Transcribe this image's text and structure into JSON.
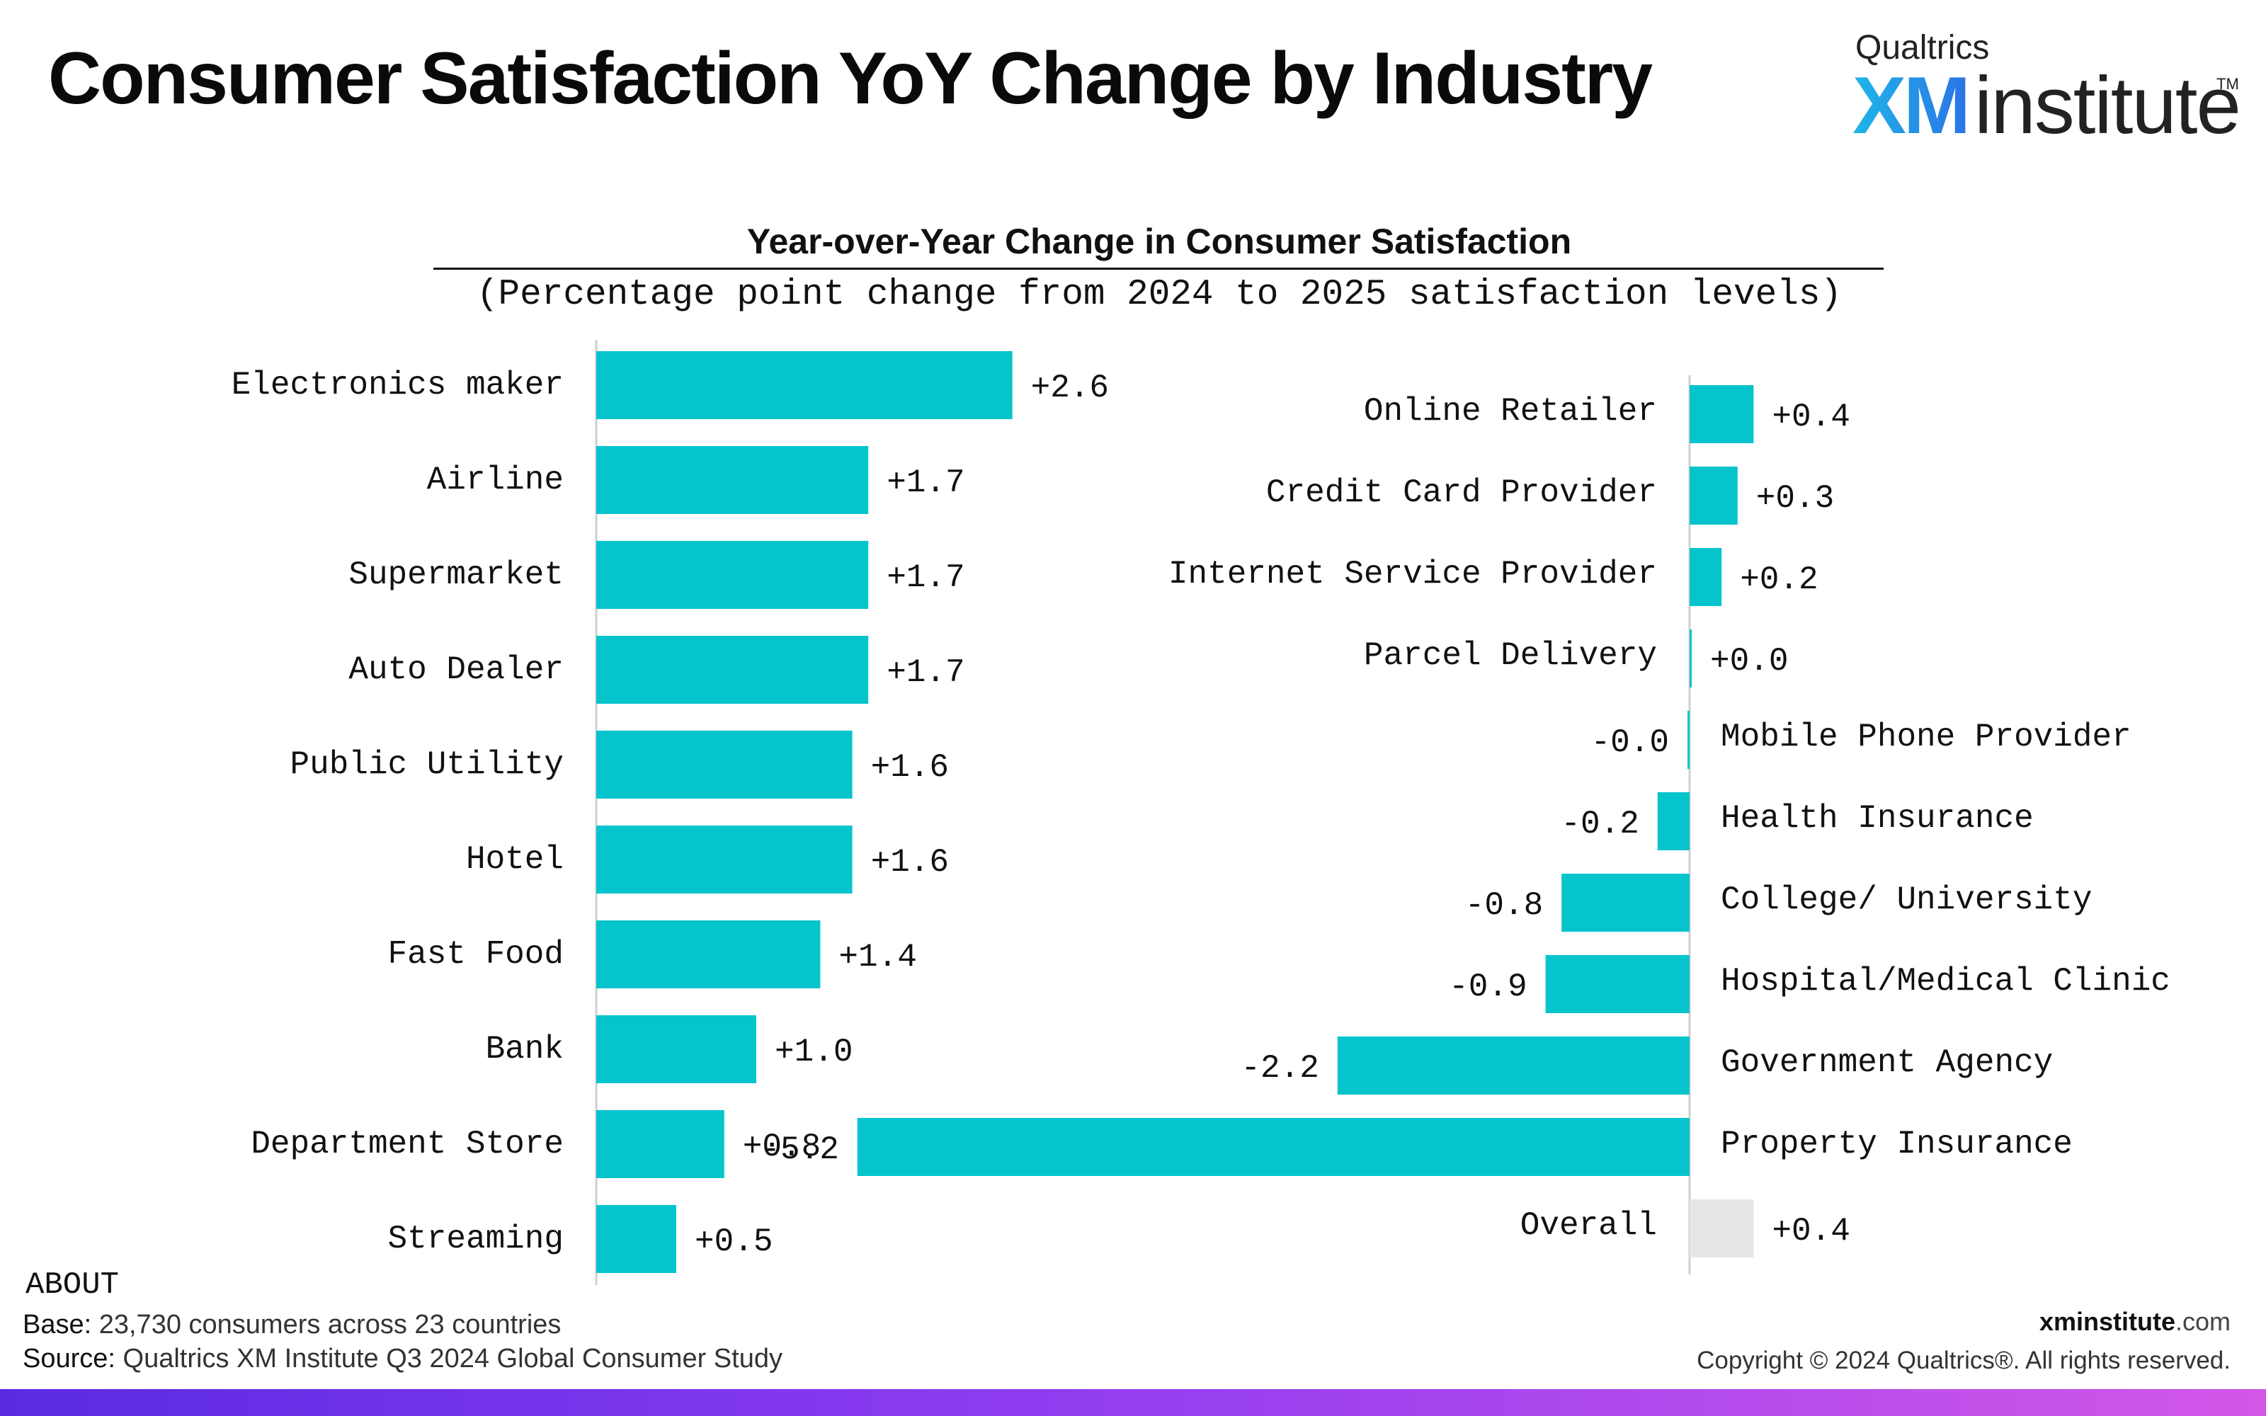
{
  "header": {
    "title": "Consumer Satisfaction YoY Change by Industry",
    "brand": {
      "top": "Qualtrics",
      "xm": "XM",
      "institute": "institute",
      "tm": "TM"
    }
  },
  "chart_data": {
    "type": "bar",
    "orientation": "horizontal",
    "title": "Year-over-Year Change in Consumer Satisfaction",
    "subtitle": "(Percentage point change from 2024 to 2025 satisfaction levels)",
    "colors": {
      "bar": "#06c4cc",
      "overall": "#e6e6e6",
      "axis": "#cfcfcf"
    },
    "panels": [
      {
        "categories": [
          "Electronics maker",
          "Airline",
          "Supermarket",
          "Auto Dealer",
          "Public Utility",
          "Hotel",
          "Fast Food",
          "Bank",
          "Department Store",
          "Streaming"
        ],
        "values": [
          2.6,
          1.7,
          1.7,
          1.7,
          1.6,
          1.6,
          1.4,
          1.0,
          0.8,
          0.5
        ],
        "labels": [
          "+2.6",
          "+1.7",
          "+1.7",
          "+1.7",
          "+1.6",
          "+1.6",
          "+1.4",
          "+1.0",
          "+0.8",
          "+0.5"
        ]
      },
      {
        "categories": [
          "Online Retailer",
          "Credit Card Provider",
          "Internet Service Provider",
          "Parcel Delivery",
          "Mobile Phone Provider",
          "Health Insurance",
          "College/ University",
          "Hospital/Medical Clinic",
          "Government Agency",
          "Property Insurance",
          "Overall"
        ],
        "values": [
          0.4,
          0.3,
          0.2,
          0.0,
          -0.0,
          -0.2,
          -0.8,
          -0.9,
          -2.2,
          -5.2,
          0.4
        ],
        "labels": [
          "+0.4",
          "+0.3",
          "+0.2",
          "+0.0",
          "-0.0",
          "-0.2",
          "-0.8",
          "-0.9",
          "-2.2",
          "-5.2",
          "+0.4"
        ]
      }
    ]
  },
  "footer": {
    "about": "ABOUT",
    "base_label": "Base:",
    "base_value": "23,730 consumers across 23 countries",
    "source_label": "Source:",
    "source_value": "Qualtrics XM Institute Q3 2024 Global Consumer Study",
    "site_bold": "xminstitute",
    "site_light": ".com",
    "copyright": "Copyright © 2024 Qualtrics®. All rights reserved."
  }
}
